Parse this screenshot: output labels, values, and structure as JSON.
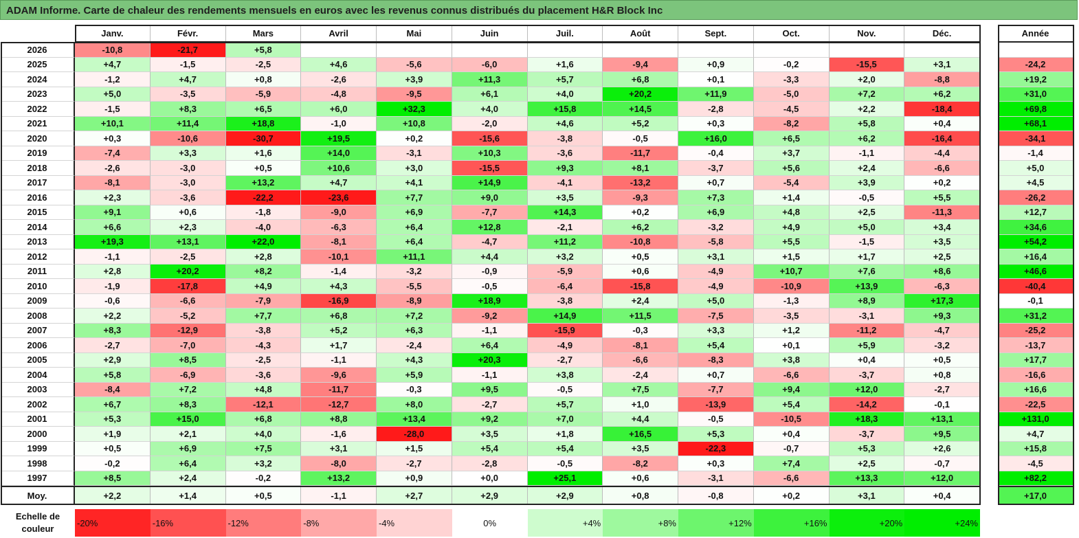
{
  "title": "ADAM Informe. Carte de chaleur des rendements mensuels en euros avec les revenus connus distribués du placement H&R Block Inc",
  "chart_data": {
    "type": "heatmap",
    "title": "ADAM Informe. Carte de chaleur des rendements mensuels en euros avec les revenus connus distribués du placement H&R Block Inc",
    "columns": [
      "Janv.",
      "Févr.",
      "Mars",
      "Avril",
      "Mai",
      "Juin",
      "Juil.",
      "Août",
      "Sept.",
      "Oct.",
      "Nov.",
      "Déc."
    ],
    "year_header": "Année",
    "rows": [
      {
        "year": "2026",
        "values": [
          -10.8,
          -21.7,
          5.8,
          null,
          null,
          null,
          null,
          null,
          null,
          null,
          null,
          null
        ],
        "annual": null
      },
      {
        "year": "2025",
        "values": [
          4.7,
          -1.5,
          -2.5,
          4.6,
          -5.6,
          -6.0,
          1.6,
          -9.4,
          0.9,
          -0.2,
          -15.5,
          3.1
        ],
        "annual": -24.2
      },
      {
        "year": "2024",
        "values": [
          -1.2,
          4.7,
          0.8,
          -2.6,
          3.9,
          11.3,
          5.7,
          6.8,
          0.1,
          -3.3,
          2.0,
          -8.8
        ],
        "annual": 19.2
      },
      {
        "year": "2023",
        "values": [
          5.0,
          -3.5,
          -5.9,
          -4.8,
          -9.5,
          6.1,
          4.0,
          20.2,
          11.9,
          -5.0,
          7.2,
          6.2
        ],
        "annual": 31.0
      },
      {
        "year": "2022",
        "values": [
          -1.5,
          8.3,
          6.5,
          6.0,
          32.3,
          4.0,
          15.8,
          14.5,
          -2.8,
          -4.5,
          2.2,
          -18.4
        ],
        "annual": 69.8
      },
      {
        "year": "2021",
        "values": [
          10.1,
          11.4,
          18.8,
          -1.0,
          10.8,
          -2.0,
          4.6,
          5.2,
          0.3,
          -8.2,
          5.8,
          0.4
        ],
        "annual": 68.1
      },
      {
        "year": "2020",
        "values": [
          0.3,
          -10.6,
          -30.7,
          19.5,
          0.2,
          -15.6,
          -3.8,
          -0.5,
          16.0,
          6.5,
          6.2,
          -16.4
        ],
        "annual": -34.1
      },
      {
        "year": "2019",
        "values": [
          -7.4,
          3.3,
          1.6,
          14.0,
          -3.1,
          10.3,
          -3.6,
          -11.7,
          -0.4,
          3.7,
          -1.1,
          -4.4
        ],
        "annual": -1.4
      },
      {
        "year": "2018",
        "values": [
          -2.6,
          -3.0,
          0.5,
          10.6,
          3.0,
          -15.5,
          9.3,
          8.1,
          -3.7,
          5.6,
          2.4,
          -6.6
        ],
        "annual": 5.0
      },
      {
        "year": "2017",
        "values": [
          -8.1,
          -3.0,
          13.2,
          4.7,
          4.1,
          14.9,
          -4.1,
          -13.2,
          0.7,
          -5.4,
          3.9,
          0.2
        ],
        "annual": 4.5
      },
      {
        "year": "2016",
        "values": [
          2.3,
          -3.6,
          -22.2,
          -23.6,
          7.7,
          9.0,
          3.5,
          -9.3,
          7.3,
          1.4,
          -0.5,
          5.5
        ],
        "annual": -26.2
      },
      {
        "year": "2015",
        "values": [
          9.1,
          0.6,
          -1.8,
          -9.0,
          6.9,
          -7.7,
          14.3,
          0.2,
          6.9,
          4.8,
          2.5,
          -11.3
        ],
        "annual": 12.7
      },
      {
        "year": "2014",
        "values": [
          6.6,
          2.3,
          -4.0,
          -6.3,
          6.4,
          12.8,
          -2.1,
          6.2,
          -3.2,
          4.9,
          5.0,
          3.4
        ],
        "annual": 34.6
      },
      {
        "year": "2013",
        "values": [
          19.3,
          13.1,
          22.0,
          -8.1,
          6.4,
          -4.7,
          11.2,
          -10.8,
          -5.8,
          5.5,
          -1.5,
          3.5
        ],
        "annual": 54.2
      },
      {
        "year": "2012",
        "values": [
          -1.1,
          -2.5,
          2.8,
          -10.1,
          11.1,
          4.4,
          3.2,
          0.5,
          3.1,
          1.5,
          1.7,
          2.5
        ],
        "annual": 16.4
      },
      {
        "year": "2011",
        "values": [
          2.8,
          20.2,
          8.2,
          -1.4,
          -3.2,
          -0.9,
          -5.9,
          0.6,
          -4.9,
          10.7,
          7.6,
          8.6
        ],
        "annual": 46.6
      },
      {
        "year": "2010",
        "values": [
          -1.9,
          -17.8,
          4.9,
          4.3,
          -5.5,
          -0.5,
          -6.4,
          -15.8,
          -4.9,
          -10.9,
          13.9,
          -6.3
        ],
        "annual": -40.4
      },
      {
        "year": "2009",
        "values": [
          -0.6,
          -6.6,
          -7.9,
          -16.9,
          -8.9,
          18.9,
          -3.8,
          2.4,
          5.0,
          -1.3,
          8.9,
          17.3
        ],
        "annual": -0.1
      },
      {
        "year": "2008",
        "values": [
          2.2,
          -5.2,
          7.7,
          6.8,
          7.2,
          -9.2,
          14.9,
          11.5,
          -7.5,
          -3.5,
          -3.1,
          9.3
        ],
        "annual": 31.2
      },
      {
        "year": "2007",
        "values": [
          8.3,
          -12.9,
          -3.8,
          5.2,
          6.3,
          -1.1,
          -15.9,
          -0.3,
          3.3,
          1.2,
          -11.2,
          -4.7
        ],
        "annual": -25.2
      },
      {
        "year": "2006",
        "values": [
          -2.7,
          -7.0,
          -4.3,
          1.7,
          -2.4,
          6.4,
          -4.9,
          -8.1,
          5.4,
          0.1,
          5.9,
          -3.2
        ],
        "annual": -13.7
      },
      {
        "year": "2005",
        "values": [
          2.9,
          8.5,
          -2.5,
          -1.1,
          4.3,
          20.3,
          -2.7,
          -6.6,
          -8.3,
          3.8,
          0.4,
          0.5
        ],
        "annual": 17.7
      },
      {
        "year": "2004",
        "values": [
          5.8,
          -6.9,
          -3.6,
          -9.6,
          5.9,
          -1.1,
          3.8,
          -2.4,
          0.7,
          -6.6,
          -3.7,
          0.8
        ],
        "annual": -16.6
      },
      {
        "year": "2003",
        "values": [
          -8.4,
          7.2,
          4.8,
          -11.7,
          -0.3,
          9.5,
          -0.5,
          7.5,
          -7.7,
          9.4,
          12.0,
          -2.7
        ],
        "annual": 16.6
      },
      {
        "year": "2002",
        "values": [
          6.7,
          8.3,
          -12.1,
          -12.7,
          8.0,
          -2.7,
          5.7,
          1.0,
          -13.9,
          5.4,
          -14.2,
          -0.1
        ],
        "annual": -22.5
      },
      {
        "year": "2001",
        "values": [
          5.3,
          15.0,
          6.8,
          8.8,
          13.4,
          9.2,
          7.0,
          4.4,
          -0.5,
          -10.5,
          18.3,
          13.1
        ],
        "annual": 131.0
      },
      {
        "year": "2000",
        "values": [
          1.9,
          2.1,
          4.0,
          -1.6,
          -28.0,
          3.5,
          1.8,
          16.5,
          5.3,
          0.4,
          -3.7,
          9.5
        ],
        "annual": 4.7
      },
      {
        "year": "1999",
        "values": [
          0.5,
          6.9,
          7.5,
          3.1,
          1.5,
          5.4,
          5.4,
          3.5,
          -22.3,
          -0.7,
          5.3,
          2.6
        ],
        "annual": 15.8
      },
      {
        "year": "1998",
        "values": [
          -0.2,
          6.4,
          3.2,
          -8.0,
          -2.7,
          -2.8,
          -0.5,
          -8.2,
          0.3,
          7.4,
          2.5,
          -0.7
        ],
        "annual": -4.5
      },
      {
        "year": "1997",
        "values": [
          8.5,
          2.4,
          -0.2,
          13.2,
          0.9,
          0.0,
          25.1,
          0.6,
          -3.1,
          -6.6,
          13.3,
          12.0
        ],
        "annual": 82.2
      }
    ],
    "average": {
      "label": "Moy.",
      "values": [
        2.2,
        1.4,
        0.5,
        -1.1,
        2.7,
        2.9,
        2.9,
        0.8,
        -0.8,
        0.2,
        3.1,
        0.4
      ],
      "annual": 17.0
    },
    "scale": {
      "label": "Echelle de couleur",
      "steps": [
        "-20%",
        "-16%",
        "-12%",
        "-8%",
        "-4%",
        "0%",
        "+4%",
        "+8%",
        "+12%",
        "+16%",
        "+20%",
        "+24%"
      ]
    },
    "colors": {
      "negative": "#ff1a1a",
      "neutral": "#ffffff",
      "positive": "#00ee00"
    }
  }
}
